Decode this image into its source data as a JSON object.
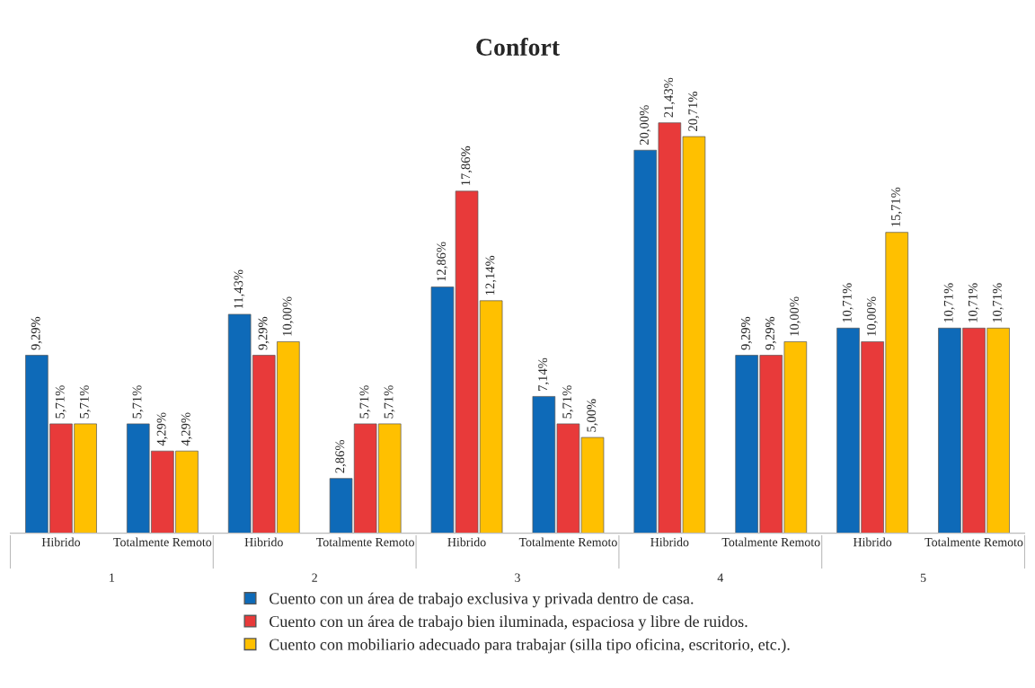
{
  "chart_data": {
    "type": "bar",
    "title": "Confort",
    "categories": [
      "Hibrido",
      "Totalmente Remoto",
      "Hibrido",
      "Totalmente Remoto",
      "Hibrido",
      "Totalmente Remoto",
      "Hibrido",
      "Totalmente Remoto",
      "Hibrido",
      "Totalmente Remoto"
    ],
    "annotations": [
      "1",
      "2",
      "3",
      "4",
      "5"
    ],
    "series": [
      {
        "name": "Cuento con un área de trabajo exclusiva y privada dentro de casa.",
        "color": "#0e6ab8",
        "values": [
          9.29,
          5.71,
          11.43,
          2.86,
          12.86,
          7.14,
          20.0,
          9.29,
          10.71,
          10.71
        ],
        "value_labels": [
          "9,29%",
          "5,71%",
          "11,43%",
          "2,86%",
          "12,86%",
          "7,14%",
          "20,00%",
          "9,29%",
          "10,71%",
          "10,71%"
        ]
      },
      {
        "name": "Cuento con un área de trabajo bien iluminada, espaciosa y libre de ruidos.",
        "color": "#e83a3a",
        "values": [
          5.71,
          4.29,
          9.29,
          5.71,
          17.86,
          5.71,
          21.43,
          9.29,
          10.0,
          10.71
        ],
        "value_labels": [
          "5,71%",
          "4,29%",
          "9,29%",
          "5,71%",
          "17,86%",
          "5,71%",
          "21,43%",
          "9,29%",
          "10,00%",
          "10,71%"
        ]
      },
      {
        "name": "Cuento con mobiliario adecuado para trabajar (silla tipo oficina, escritorio, etc.).",
        "color": "#ffc000",
        "values": [
          5.71,
          4.29,
          10.0,
          5.71,
          12.14,
          5.0,
          20.71,
          10.0,
          15.71,
          10.71
        ],
        "value_labels": [
          "5,71%",
          "4,29%",
          "10,00%",
          "5,71%",
          "12,14%",
          "5,00%",
          "20,71%",
          "10,00%",
          "15,71%",
          "10,71%"
        ]
      }
    ],
    "legend": "bottom",
    "grid": false,
    "tick_labels": "x"
  }
}
